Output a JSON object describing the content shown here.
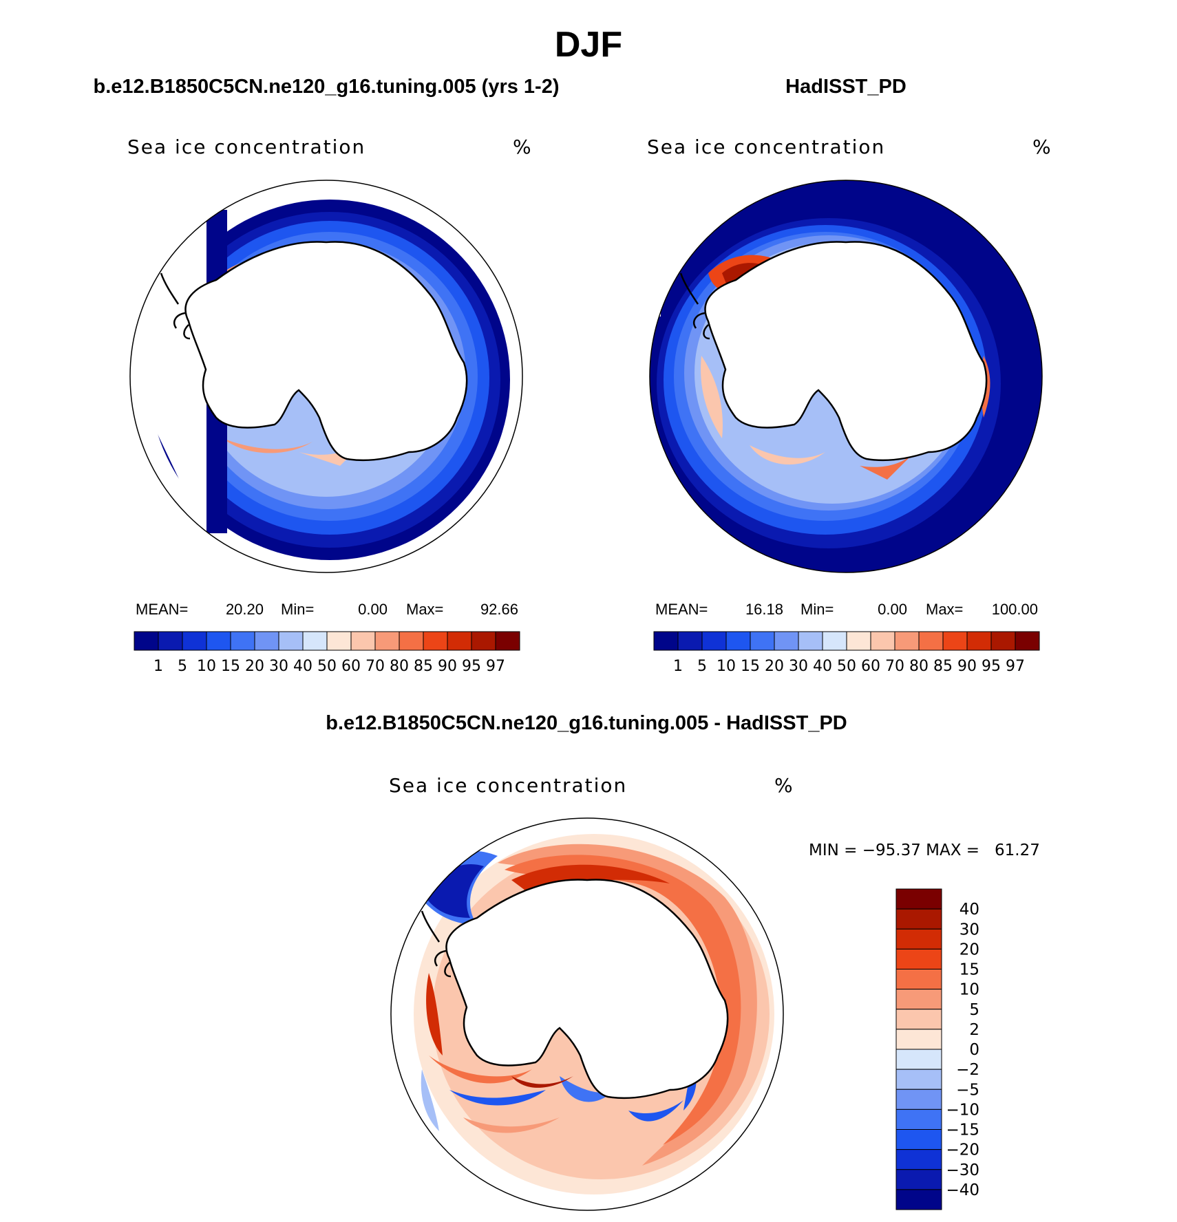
{
  "season": "DJF",
  "panels": {
    "model": {
      "case_title": "b.e12.B1850C5CN.ne120_g16.tuning.005 (yrs 1-2)",
      "variable": "Sea ice concentration",
      "units": "%",
      "stats": {
        "mean_label": "MEAN=",
        "mean": "20.20",
        "min_label": "Min=",
        "min": "0.00",
        "max_label": "Max=",
        "max": "92.66"
      }
    },
    "obs": {
      "case_title": "HadISST_PD",
      "variable": "Sea ice concentration",
      "units": "%",
      "stats": {
        "mean_label": "MEAN=",
        "mean": "16.18",
        "min_label": "Min=",
        "min": "0.00",
        "max_label": "Max=",
        "max": "100.00"
      }
    },
    "diff": {
      "case_title": "b.e12.B1850C5CN.ne120_g16.tuning.005 - HadISST_PD",
      "variable": "Sea ice concentration",
      "units": "%",
      "minmax_text": "MIN = −95.37 MAX =   61.27"
    }
  },
  "abs_colorbar": {
    "levels": [
      "1",
      "5",
      "10",
      "15",
      "20",
      "30",
      "40",
      "50",
      "60",
      "70",
      "80",
      "85",
      "90",
      "95",
      "97"
    ],
    "colors": [
      "#00058a",
      "#0a1ab0",
      "#0f32d6",
      "#1e56f0",
      "#3f73f5",
      "#7094f5",
      "#a6bff7",
      "#d6e6fb",
      "#fde6d6",
      "#fbc6ad",
      "#f79a78",
      "#f47045",
      "#ec4517",
      "#d22c05",
      "#aa1800",
      "#7a0000"
    ]
  },
  "diff_colorbar": {
    "levels": [
      "40",
      "30",
      "20",
      "15",
      "10",
      "5",
      "2",
      "0",
      "−2",
      "−5",
      "−10",
      "−15",
      "−20",
      "−30",
      "−40"
    ],
    "colors": [
      "#7a0000",
      "#aa1800",
      "#d22c05",
      "#ec4517",
      "#f47045",
      "#f79a78",
      "#fbc6ad",
      "#fde6d6",
      "#d6e6fb",
      "#a6bff7",
      "#7094f5",
      "#3f73f5",
      "#1e56f0",
      "#0f32d6",
      "#0a1ab0",
      "#00058a"
    ]
  }
}
